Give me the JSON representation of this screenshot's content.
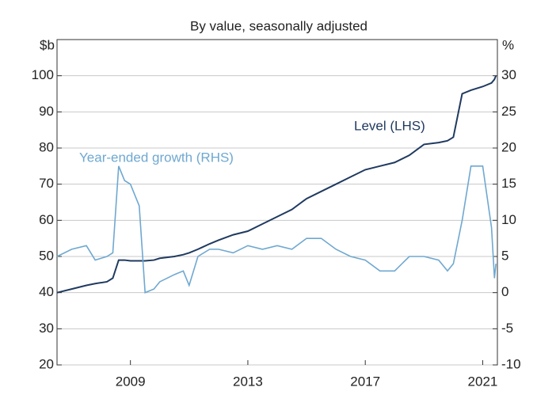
{
  "chart_data": {
    "type": "line",
    "title": "By value, seasonally adjusted",
    "y_label": "$b",
    "y2_label": "%",
    "x": [
      2006.5,
      2007,
      2007.5,
      2007.8,
      2008.2,
      2008.4,
      2008.6,
      2008.8,
      2009,
      2009.3,
      2009.5,
      2009.8,
      2010,
      2010.5,
      2010.8,
      2011,
      2011.3,
      2011.7,
      2012,
      2012.5,
      2013,
      2013.5,
      2014,
      2014.5,
      2015,
      2015.5,
      2016,
      2016.5,
      2017,
      2017.5,
      2018,
      2018.5,
      2019,
      2019.5,
      2019.8,
      2020,
      2020.3,
      2020.6,
      2021,
      2021.3,
      2021.4,
      2021.45
    ],
    "series": [
      {
        "name": "Level (LHS)",
        "color": "#1f3a60",
        "axis": "y",
        "values": [
          40,
          41,
          42,
          42.5,
          43,
          44,
          49,
          49,
          48.8,
          48.8,
          48.8,
          49,
          49.5,
          50,
          50.5,
          51,
          52,
          53.5,
          54.5,
          56,
          57,
          59,
          61,
          63,
          66,
          68,
          70,
          72,
          74,
          75,
          76,
          78,
          81,
          81.5,
          82,
          83,
          95,
          96,
          97,
          98,
          99,
          100
        ]
      },
      {
        "name": "Year-ended growth (RHS)",
        "color": "#6fa8d0",
        "axis": "y2",
        "values": [
          5,
          6,
          6.5,
          4.5,
          5,
          5.5,
          17.5,
          15.5,
          15,
          12,
          0,
          0.5,
          1.5,
          2.5,
          3,
          1,
          5,
          6,
          6,
          5.5,
          6.5,
          6,
          6.5,
          6,
          7.5,
          7.5,
          6,
          5,
          4.5,
          3,
          3,
          5,
          5,
          4.5,
          3,
          4,
          10,
          17.5,
          17.5,
          9,
          2,
          4
        ]
      }
    ],
    "xlim": [
      2006.5,
      2021.5
    ],
    "xticks": [
      2009,
      2013,
      2017,
      2021
    ],
    "ylim": [
      20,
      110
    ],
    "yticks": [
      20,
      30,
      40,
      50,
      60,
      70,
      80,
      90,
      100
    ],
    "y2lim": [
      -10,
      35
    ],
    "y2ticks": [
      -10,
      -5,
      0,
      5,
      10,
      15,
      20,
      25,
      30
    ],
    "grid": true
  }
}
